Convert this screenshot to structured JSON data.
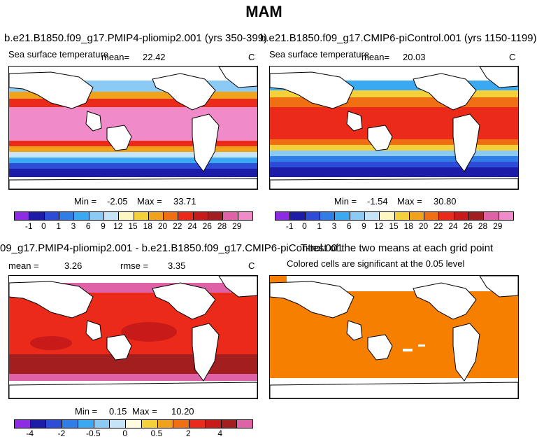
{
  "figure": {
    "season": "MAM",
    "variable": "Sea surface temperature",
    "units": "C"
  },
  "panel_a": {
    "run_label": "b.e21.B1850.f09_g17.PMIP4-pliomip2.001 (yrs 350-399)",
    "mean_label": "mean=",
    "mean_value": "22.42",
    "min_label": "Min =",
    "min_value": "-2.05",
    "max_label": "Max =",
    "max_value": "33.71"
  },
  "panel_b": {
    "run_label": "b.e21.B1850.f09_g17.CMIP6-piControl.001 (yrs 1150-1199)",
    "mean_label": "mean=",
    "mean_value": "20.03",
    "min_label": "Min =",
    "min_value": "-1.54",
    "max_label": "Max =",
    "max_value": "30.80"
  },
  "panel_c": {
    "run_label": "09_g17.PMIP4-pliomip2.001 - b.e21.B1850.f09_g17.CMIP6-piControl.001",
    "mean_label": "mean =",
    "mean_value": "3.26",
    "rmse_label": "rmse =",
    "rmse_value": "3.35",
    "min_label": "Min =",
    "min_value": "0.15",
    "max_label": "Max =",
    "max_value": "10.20"
  },
  "panel_d": {
    "title": "T-test of the two means at each grid point",
    "subtitle": "Colored cells are significant at the 0.05 level",
    "significant_color": "#f77f00"
  },
  "sst_colorbar": {
    "labels": [
      "-1",
      "0",
      "1",
      "3",
      "6",
      "9",
      "12",
      "15",
      "18",
      "20",
      "22",
      "24",
      "26",
      "28",
      "29"
    ],
    "colors": [
      "#8e2be5",
      "#1c1ca8",
      "#2d4cd8",
      "#2f7ee8",
      "#3aa9f1",
      "#8ccaf6",
      "#c6e4f8",
      "#fff7c0",
      "#f4d13a",
      "#f0a21a",
      "#ef6f12",
      "#ec2a1a",
      "#c81a18",
      "#a31e1e",
      "#e062a6",
      "#f18ac8"
    ]
  },
  "diff_colorbar": {
    "labels": [
      "-4",
      "-2",
      "-0.5",
      "0",
      "0.5",
      "2",
      "4"
    ],
    "colors": [
      "#8e2be5",
      "#1c1ca8",
      "#2d4cd8",
      "#2f7ee8",
      "#3aa9f1",
      "#8ccaf6",
      "#c6e4f8",
      "#fffbe0",
      "#f4d13a",
      "#f0a21a",
      "#ef6f12",
      "#ec2a1a",
      "#c81a18",
      "#a31e1e",
      "#e062a6"
    ]
  }
}
